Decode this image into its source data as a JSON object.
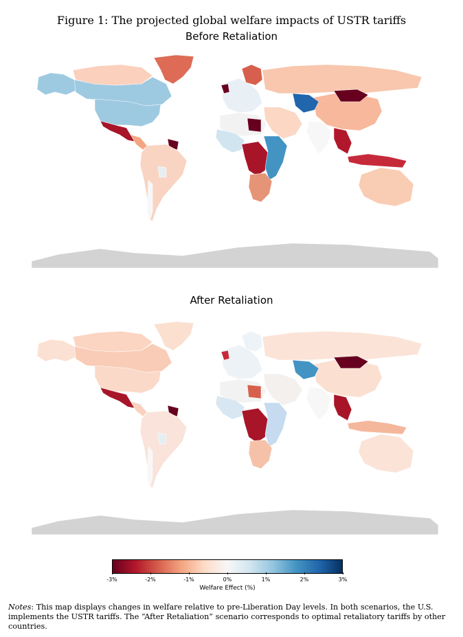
{
  "figure": {
    "title": "Figure 1: The projected global welfare impacts of USTR tariffs"
  },
  "maps": [
    {
      "title": "Before Retaliation",
      "regions": [
        {
          "name": "canada",
          "color": "#9ecae1"
        },
        {
          "name": "alaska",
          "color": "#9ecae1"
        },
        {
          "name": "canada-arctic",
          "color": "#fbd0bc"
        },
        {
          "name": "usa",
          "color": "#9ecae1"
        },
        {
          "name": "greenland",
          "color": "#dd6b55"
        },
        {
          "name": "mexico",
          "color": "#a81529"
        },
        {
          "name": "central-america",
          "color": "#f4a582"
        },
        {
          "name": "caribbean-guyana",
          "color": "#67001f"
        },
        {
          "name": "south-america",
          "color": "#f9d4c3"
        },
        {
          "name": "bolivia",
          "color": "#e6eef4"
        },
        {
          "name": "chile",
          "color": "#f7f7f7"
        },
        {
          "name": "europe",
          "color": "#e8f0f6"
        },
        {
          "name": "uk",
          "color": "#67001f"
        },
        {
          "name": "scandinavia",
          "color": "#d6604d"
        },
        {
          "name": "russia",
          "color": "#f8c7ae"
        },
        {
          "name": "china",
          "color": "#f7b89b"
        },
        {
          "name": "mongolia",
          "color": "#67001f"
        },
        {
          "name": "india",
          "color": "#f7f7f7"
        },
        {
          "name": "southeast-asia",
          "color": "#b2182b"
        },
        {
          "name": "indonesia-png",
          "color": "#c62a3a"
        },
        {
          "name": "australia",
          "color": "#f9ccb4"
        },
        {
          "name": "north-africa",
          "color": "#f2f2f2"
        },
        {
          "name": "libya",
          "color": "#67001f"
        },
        {
          "name": "west-africa",
          "color": "#d1e5f0"
        },
        {
          "name": "central-africa",
          "color": "#a81529"
        },
        {
          "name": "east-africa",
          "color": "#4393c3"
        },
        {
          "name": "southern-africa",
          "color": "#e69478"
        },
        {
          "name": "middle-east",
          "color": "#fbd7c4"
        },
        {
          "name": "central-asia",
          "color": "#2166ac"
        },
        {
          "name": "antarctica",
          "color": "#d3d3d3"
        }
      ]
    },
    {
      "title": "After Retaliation",
      "regions": [
        {
          "name": "canada",
          "color": "#f8ccb6"
        },
        {
          "name": "alaska",
          "color": "#fbe1d3"
        },
        {
          "name": "canada-arctic",
          "color": "#fbd5c2"
        },
        {
          "name": "usa",
          "color": "#fbd9c8"
        },
        {
          "name": "greenland",
          "color": "#fbe0d0"
        },
        {
          "name": "mexico",
          "color": "#a81529"
        },
        {
          "name": "central-america",
          "color": "#f9d2c0"
        },
        {
          "name": "caribbean-guyana",
          "color": "#67001f"
        },
        {
          "name": "south-america",
          "color": "#f9e3da"
        },
        {
          "name": "bolivia",
          "color": "#e6eef4"
        },
        {
          "name": "chile",
          "color": "#f7f7f7"
        },
        {
          "name": "europe",
          "color": "#edf2f6"
        },
        {
          "name": "uk",
          "color": "#c62a3a"
        },
        {
          "name": "scandinavia",
          "color": "#eef3f7"
        },
        {
          "name": "russia",
          "color": "#fbe3d7"
        },
        {
          "name": "china",
          "color": "#fbe0d1"
        },
        {
          "name": "mongolia",
          "color": "#67001f"
        },
        {
          "name": "india",
          "color": "#f7f7f7"
        },
        {
          "name": "southeast-asia",
          "color": "#a81529"
        },
        {
          "name": "indonesia-png",
          "color": "#f4b79c"
        },
        {
          "name": "australia",
          "color": "#fbe3d7"
        },
        {
          "name": "north-africa",
          "color": "#f2f2f2"
        },
        {
          "name": "libya",
          "color": "#d6604d"
        },
        {
          "name": "west-africa",
          "color": "#d8e7f1"
        },
        {
          "name": "central-africa",
          "color": "#a81529"
        },
        {
          "name": "east-africa",
          "color": "#c6dbef"
        },
        {
          "name": "southern-africa",
          "color": "#f5c2a9"
        },
        {
          "name": "middle-east",
          "color": "#f4f0ee"
        },
        {
          "name": "central-asia",
          "color": "#4393c3"
        },
        {
          "name": "antarctica",
          "color": "#d3d3d3"
        }
      ]
    }
  ],
  "colorbar": {
    "label": "Welfare Effect (%)",
    "min": -3,
    "max": 3,
    "ticks": [
      {
        "value": -3,
        "label": "-3%"
      },
      {
        "value": -2,
        "label": "-2%"
      },
      {
        "value": -1,
        "label": "-1%"
      },
      {
        "value": 0,
        "label": "0%"
      },
      {
        "value": 1,
        "label": "1%"
      },
      {
        "value": 2,
        "label": "2%"
      },
      {
        "value": 3,
        "label": "3%"
      }
    ],
    "stops": [
      "#67001f",
      "#b2182b",
      "#d6604d",
      "#f4a582",
      "#fddbc7",
      "#f7f7f7",
      "#d1e5f0",
      "#92c5de",
      "#4393c3",
      "#2166ac",
      "#053061"
    ]
  },
  "notes": {
    "label": "Notes",
    "text": ": This map displays changes in welfare relative to pre-Liberation Day levels. In both scenarios, the U.S. implements the USTR tariffs. The “After Retaliation” scenario corresponds to optimal retaliatory tariffs by other countries."
  }
}
